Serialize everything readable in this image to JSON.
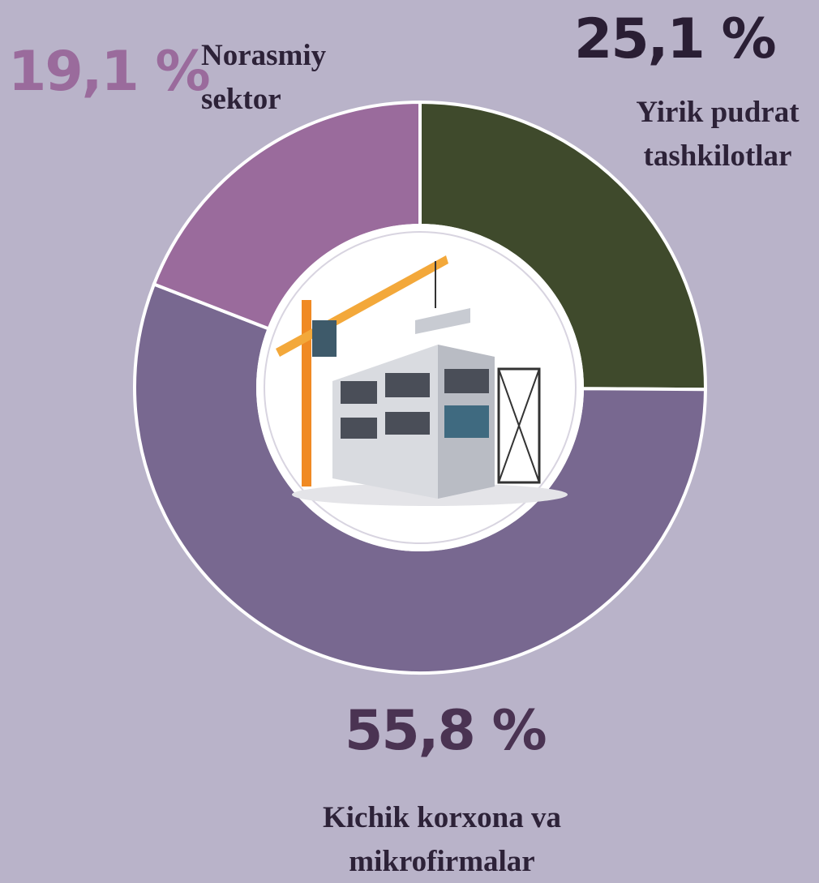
{
  "chart_data": {
    "type": "donut",
    "categories": [
      "Yirik pudrat tashkilotlar",
      "Kichik korxona va mikrofirmalar",
      "Norasmiy sektor"
    ],
    "values": [
      25.1,
      55.8,
      19.1
    ],
    "value_labels": [
      "25,1 %",
      "55,8 %",
      "19,1 %"
    ],
    "colors": [
      "#3f4a2c",
      "#786890",
      "#9a6b9c"
    ]
  }
}
